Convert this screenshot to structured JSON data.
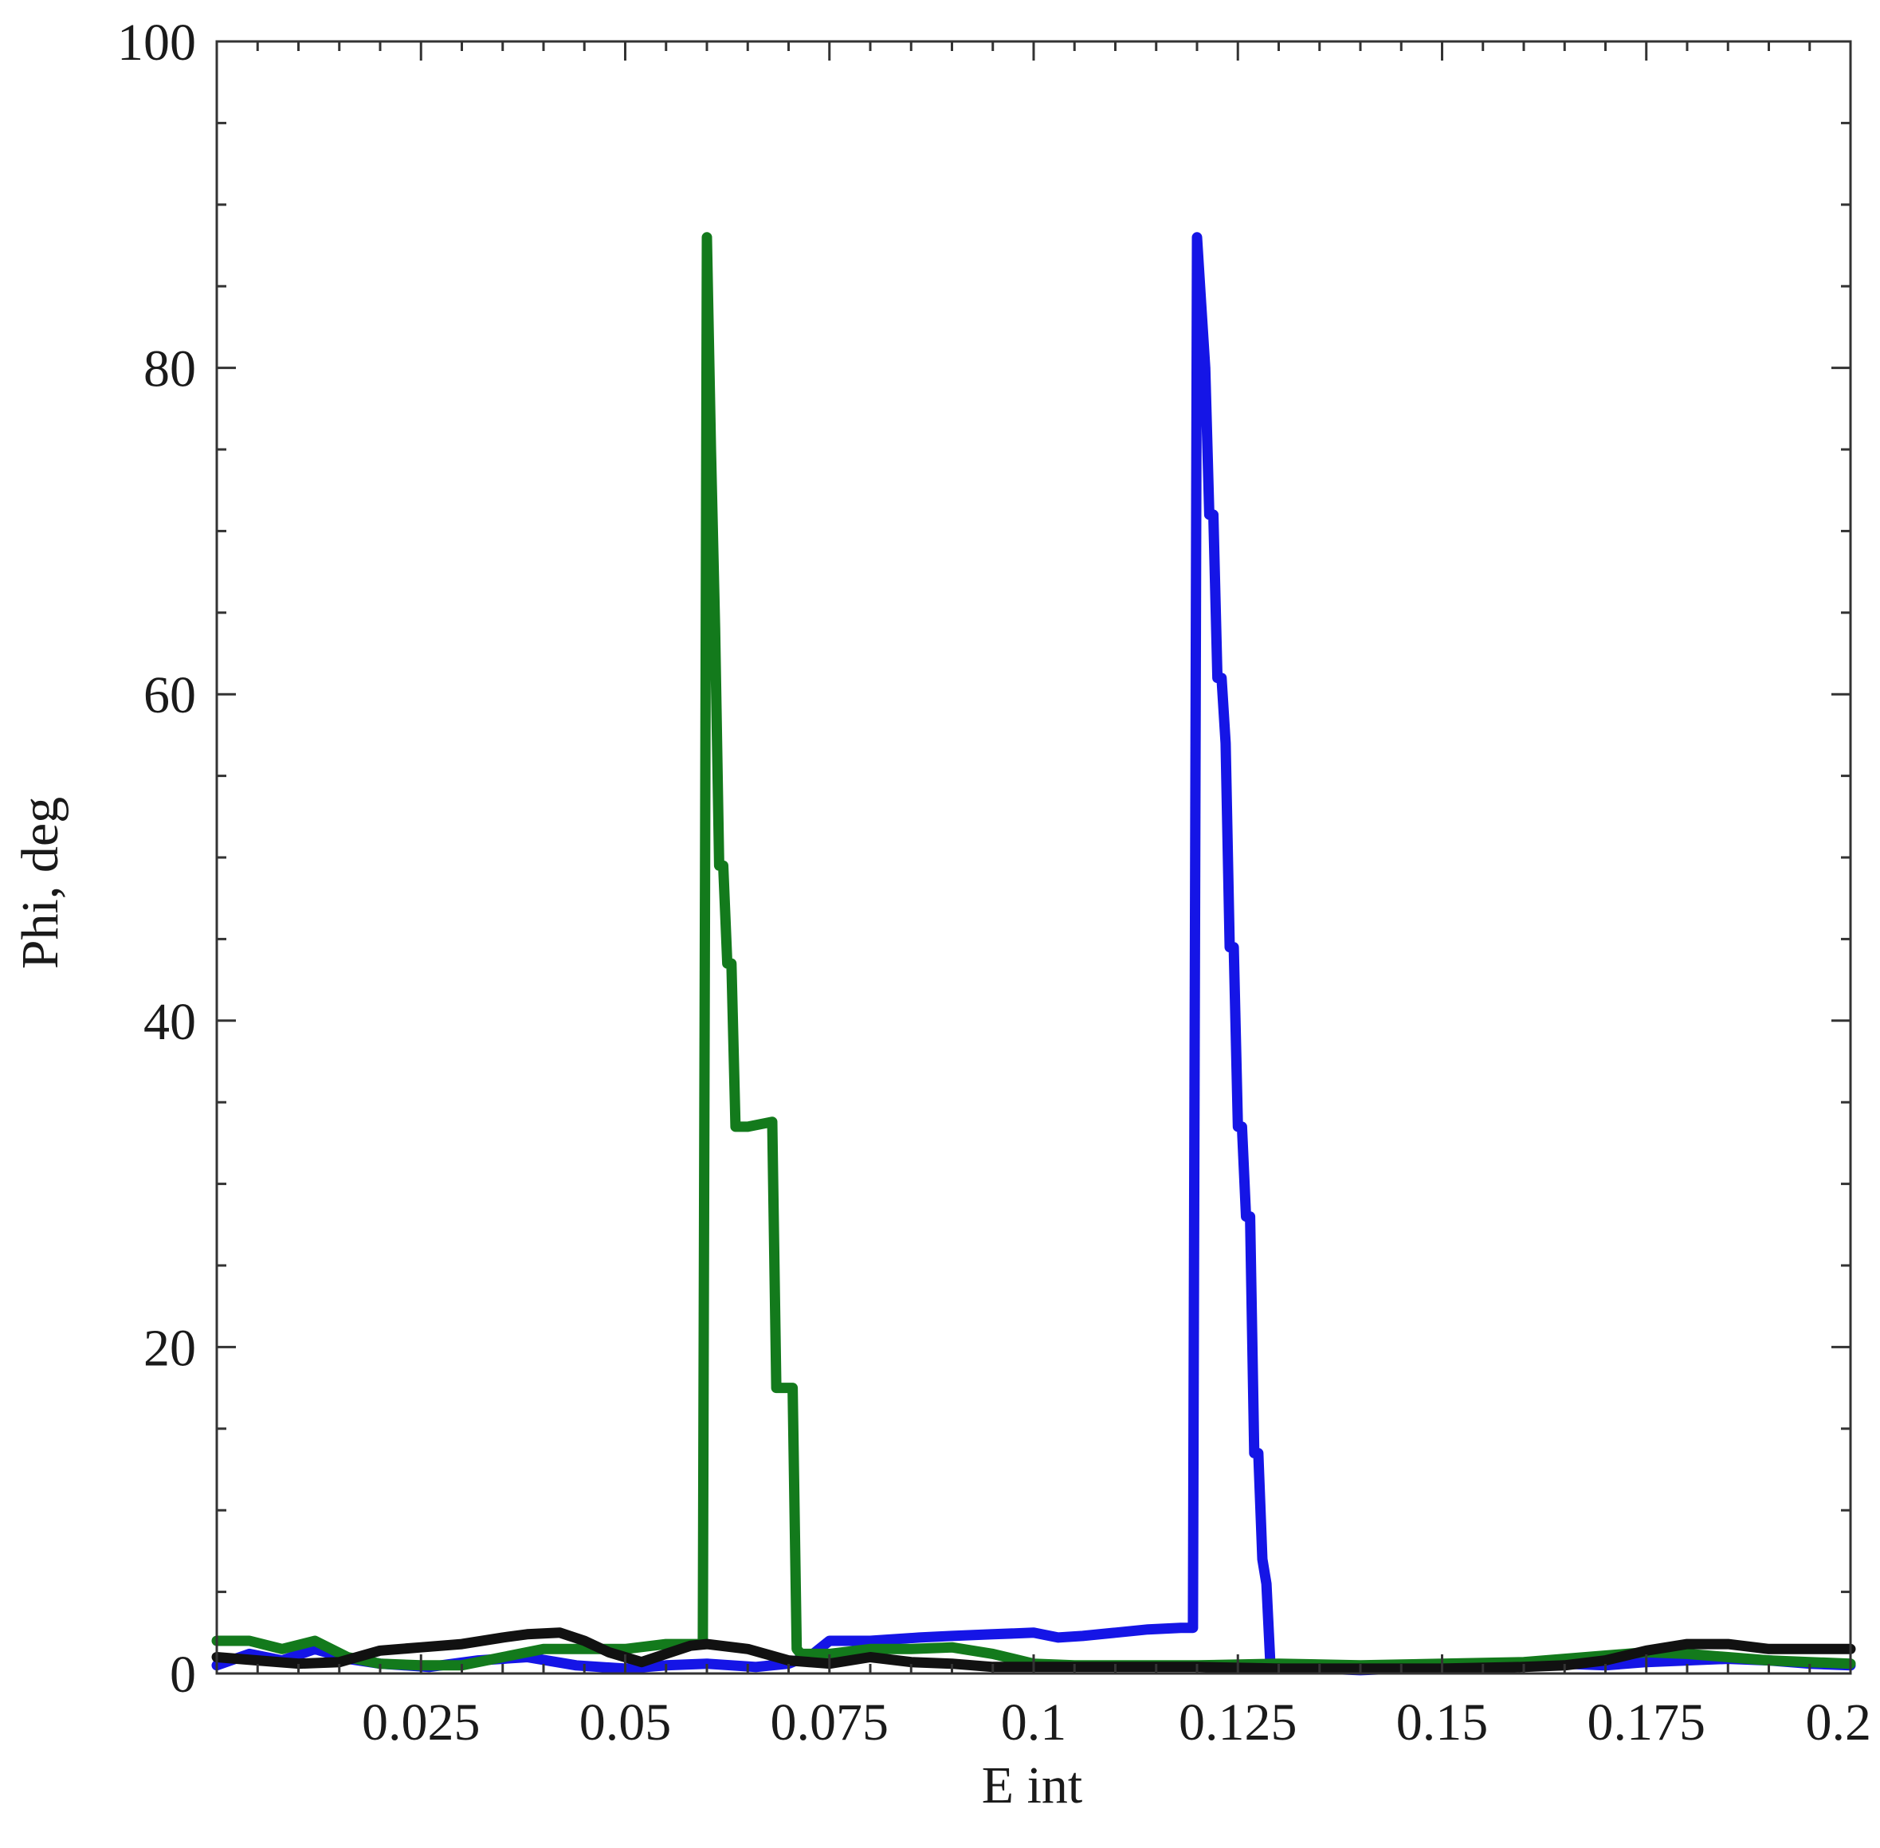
{
  "chart_data": {
    "type": "line",
    "title": "",
    "xlabel": "E int",
    "ylabel": "Phi, deg",
    "xlim": [
      0.0,
      0.2
    ],
    "ylim": [
      0,
      100
    ],
    "grid": false,
    "legend": "none",
    "x_ticks": [
      0.025,
      0.05,
      0.075,
      0.1,
      0.125,
      0.15,
      0.175,
      0.2
    ],
    "x_tick_labels": [
      "0.025",
      "0.05",
      "0.075",
      "0.1",
      "0.125",
      "0.15",
      "0.175",
      "0.2"
    ],
    "y_ticks": [
      0,
      20,
      40,
      60,
      80,
      100
    ],
    "y_tick_labels": [
      "0",
      "20",
      "40",
      "60",
      "80",
      "100"
    ],
    "series": [
      {
        "color": "#1515e6",
        "x": [
          0.0,
          0.004,
          0.008,
          0.012,
          0.016,
          0.02,
          0.026,
          0.032,
          0.038,
          0.044,
          0.05,
          0.055,
          0.06,
          0.066,
          0.07,
          0.073,
          0.075,
          0.08,
          0.086,
          0.09,
          0.095,
          0.1,
          0.103,
          0.106,
          0.11,
          0.114,
          0.118,
          0.1195,
          0.12,
          0.1205,
          0.121,
          0.1215,
          0.122,
          0.1225,
          0.123,
          0.1235,
          0.124,
          0.1245,
          0.125,
          0.1255,
          0.126,
          0.1265,
          0.127,
          0.1275,
          0.128,
          0.1285,
          0.129,
          0.135,
          0.14,
          0.145,
          0.15,
          0.155,
          0.16,
          0.165,
          0.17,
          0.175,
          0.18,
          0.185,
          0.19,
          0.195,
          0.2
        ],
        "y": [
          0.5,
          1.2,
          0.8,
          1.5,
          0.9,
          0.6,
          0.4,
          0.8,
          1.0,
          0.5,
          0.3,
          0.5,
          0.6,
          0.4,
          0.6,
          1.2,
          2.0,
          2.0,
          2.2,
          2.3,
          2.4,
          2.5,
          2.2,
          2.3,
          2.5,
          2.7,
          2.8,
          2.8,
          88.0,
          84.0,
          80.0,
          71.0,
          71.0,
          61.0,
          61.0,
          57.0,
          44.5,
          44.5,
          33.5,
          33.5,
          28.0,
          28.0,
          13.5,
          13.5,
          7.0,
          5.5,
          0.3,
          0.3,
          0.2,
          0.3,
          0.3,
          0.5,
          0.6,
          0.6,
          0.5,
          0.7,
          0.8,
          0.9,
          0.8,
          0.6,
          0.5
        ]
      },
      {
        "color": "#137a1c",
        "x": [
          0.0,
          0.004,
          0.008,
          0.012,
          0.016,
          0.02,
          0.025,
          0.03,
          0.035,
          0.04,
          0.045,
          0.05,
          0.055,
          0.0595,
          0.06,
          0.0605,
          0.061,
          0.0615,
          0.062,
          0.0625,
          0.063,
          0.0635,
          0.064,
          0.065,
          0.068,
          0.0685,
          0.069,
          0.0705,
          0.071,
          0.0715,
          0.075,
          0.08,
          0.085,
          0.09,
          0.095,
          0.1,
          0.105,
          0.11,
          0.12,
          0.13,
          0.14,
          0.15,
          0.16,
          0.165,
          0.17,
          0.175,
          0.18,
          0.185,
          0.19,
          0.195,
          0.2
        ],
        "y": [
          2.0,
          2.0,
          1.5,
          2.0,
          1.0,
          0.6,
          0.5,
          0.5,
          1.0,
          1.5,
          1.5,
          1.5,
          1.8,
          1.8,
          88.0,
          75.0,
          64.0,
          49.5,
          49.5,
          43.5,
          43.5,
          33.5,
          33.5,
          33.5,
          33.8,
          17.5,
          17.5,
          17.5,
          1.5,
          1.2,
          1.2,
          1.5,
          1.5,
          1.6,
          1.2,
          0.6,
          0.5,
          0.5,
          0.5,
          0.6,
          0.5,
          0.6,
          0.7,
          0.9,
          1.1,
          1.3,
          1.2,
          1.0,
          0.8,
          0.7,
          0.6
        ]
      },
      {
        "color": "#111111",
        "x": [
          0.0,
          0.005,
          0.01,
          0.015,
          0.02,
          0.025,
          0.03,
          0.035,
          0.038,
          0.042,
          0.045,
          0.048,
          0.052,
          0.055,
          0.058,
          0.06,
          0.065,
          0.07,
          0.075,
          0.08,
          0.085,
          0.09,
          0.095,
          0.1,
          0.11,
          0.12,
          0.13,
          0.14,
          0.15,
          0.16,
          0.165,
          0.17,
          0.175,
          0.18,
          0.185,
          0.19,
          0.195,
          0.2
        ],
        "y": [
          1.0,
          0.8,
          0.6,
          0.7,
          1.4,
          1.6,
          1.8,
          2.2,
          2.4,
          2.5,
          2.0,
          1.3,
          0.7,
          1.2,
          1.7,
          1.8,
          1.5,
          0.8,
          0.6,
          1.0,
          0.7,
          0.6,
          0.4,
          0.4,
          0.4,
          0.4,
          0.3,
          0.3,
          0.3,
          0.4,
          0.5,
          0.8,
          1.4,
          1.8,
          1.8,
          1.5,
          1.5,
          1.5
        ]
      }
    ]
  }
}
